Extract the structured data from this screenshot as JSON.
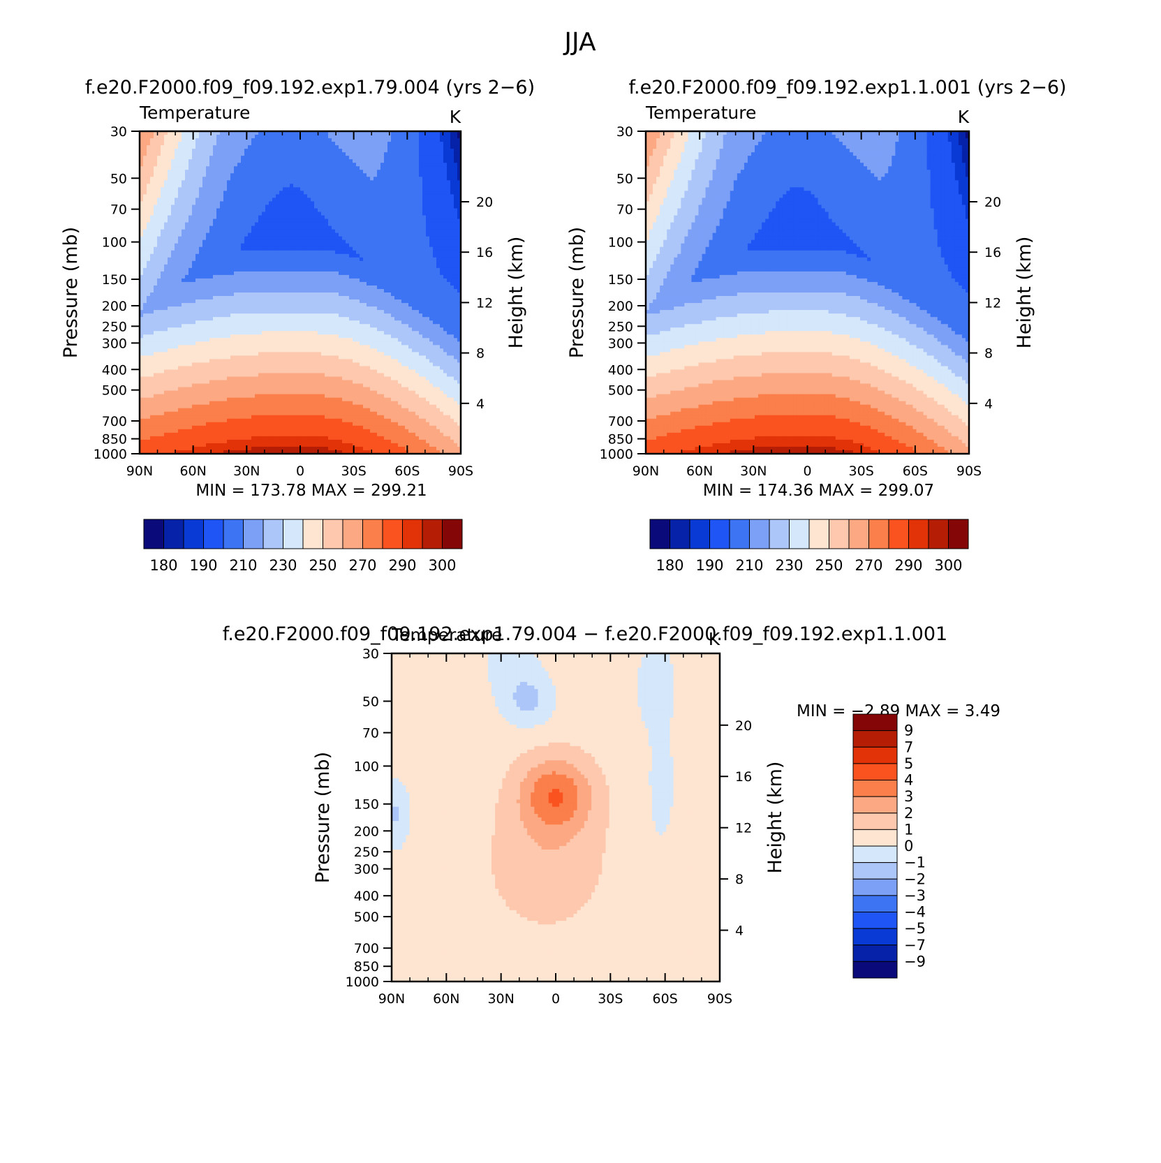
{
  "figure": {
    "title": "JJA"
  },
  "chart_data": [
    {
      "type": "heatmap",
      "panel_title": "f.e20.F2000.f09_f09.192.exp1.79.004 (yrs 2−6)",
      "variable": "Temperature",
      "units": "K",
      "xlabel": "",
      "ylabel": "Pressure (mb)",
      "ylabel_right": "Height (km)",
      "x_ticks": [
        "90N",
        "60N",
        "30N",
        "0",
        "30S",
        "60S",
        "90S"
      ],
      "y_ticks": [
        "30",
        "50",
        "70",
        "100",
        "150",
        "200",
        "250",
        "300",
        "400",
        "500",
        "700",
        "850",
        "1000"
      ],
      "height_ticks": [
        "20",
        "16",
        "12",
        "8",
        "4"
      ],
      "min_label": "MIN",
      "min_value": "173.78",
      "max_label": "MAX",
      "max_value": "299.21",
      "colorbar_labels": [
        "180",
        "190",
        "210",
        "230",
        "250",
        "270",
        "290",
        "300"
      ],
      "levels": [
        180,
        185,
        190,
        200,
        210,
        220,
        230,
        240,
        250,
        260,
        270,
        280,
        290,
        295,
        300
      ],
      "colors": [
        "#0a0a7a",
        "#0522a8",
        "#0a3ad6",
        "#1f55f5",
        "#3d74f4",
        "#7da0f7",
        "#adc6fa",
        "#d5e7fb",
        "#fee5d1",
        "#fdc8ad",
        "#fca883",
        "#fb7f4a",
        "#fa5320",
        "#e23308",
        "#b51e05",
        "#850606"
      ],
      "temperature_grid_note_latitudes": [
        "90N",
        "60N",
        "30N",
        "0",
        "30S",
        "60S",
        "90S"
      ]
    },
    {
      "type": "heatmap",
      "panel_title": "f.e20.F2000.f09_f09.192.exp1.1.001 (yrs 2−6)",
      "variable": "Temperature",
      "units": "K",
      "xlabel": "",
      "ylabel": "Pressure (mb)",
      "ylabel_right": "Height (km)",
      "x_ticks": [
        "90N",
        "60N",
        "30N",
        "0",
        "30S",
        "60S",
        "90S"
      ],
      "y_ticks": [
        "30",
        "50",
        "70",
        "100",
        "150",
        "200",
        "250",
        "300",
        "400",
        "500",
        "700",
        "850",
        "1000"
      ],
      "height_ticks": [
        "20",
        "16",
        "12",
        "8",
        "4"
      ],
      "min_label": "MIN",
      "min_value": "174.36",
      "max_label": "MAX",
      "max_value": "299.07",
      "colorbar_labels": [
        "180",
        "190",
        "210",
        "230",
        "250",
        "270",
        "290",
        "300"
      ],
      "levels": [
        180,
        185,
        190,
        200,
        210,
        220,
        230,
        240,
        250,
        260,
        270,
        280,
        290,
        295,
        300
      ],
      "colors": [
        "#0a0a7a",
        "#0522a8",
        "#0a3ad6",
        "#1f55f5",
        "#3d74f4",
        "#7da0f7",
        "#adc6fa",
        "#d5e7fb",
        "#fee5d1",
        "#fdc8ad",
        "#fca883",
        "#fb7f4a",
        "#fa5320",
        "#e23308",
        "#b51e05",
        "#850606"
      ]
    },
    {
      "type": "heatmap",
      "panel_title": "f.e20.F2000.f09_f09.192.exp1.79.004 − f.e20.F2000.f09_f09.192.exp1.1.001",
      "variable": "Temperature",
      "units": "K",
      "xlabel": "",
      "ylabel": "Pressure (mb)",
      "ylabel_right": "Height (km)",
      "x_ticks": [
        "90N",
        "60N",
        "30N",
        "0",
        "30S",
        "60S",
        "90S"
      ],
      "y_ticks": [
        "30",
        "50",
        "70",
        "100",
        "150",
        "200",
        "250",
        "300",
        "400",
        "500",
        "700",
        "850",
        "1000"
      ],
      "height_ticks": [
        "20",
        "16",
        "12",
        "8",
        "4"
      ],
      "min_label": "MIN",
      "min_value": "−2.89",
      "max_label": "MAX",
      "max_value": "3.49",
      "colorbar_labels": [
        "9",
        "7",
        "5",
        "4",
        "3",
        "2",
        "1",
        "0",
        "−1",
        "−2",
        "−3",
        "−4",
        "−5",
        "−7",
        "−9"
      ],
      "levels": [
        -9,
        -7,
        -5,
        -4,
        -3,
        -2,
        -1,
        0,
        1,
        2,
        3,
        4,
        5,
        7,
        9
      ],
      "colors": [
        "#0a0a7a",
        "#0522a8",
        "#0a3ad6",
        "#1f55f5",
        "#3d74f4",
        "#7da0f7",
        "#adc6fa",
        "#d5e7fb",
        "#fee5d1",
        "#fdc8ad",
        "#fca883",
        "#fb7f4a",
        "#fa5320",
        "#e23308",
        "#b51e05",
        "#850606"
      ]
    }
  ]
}
